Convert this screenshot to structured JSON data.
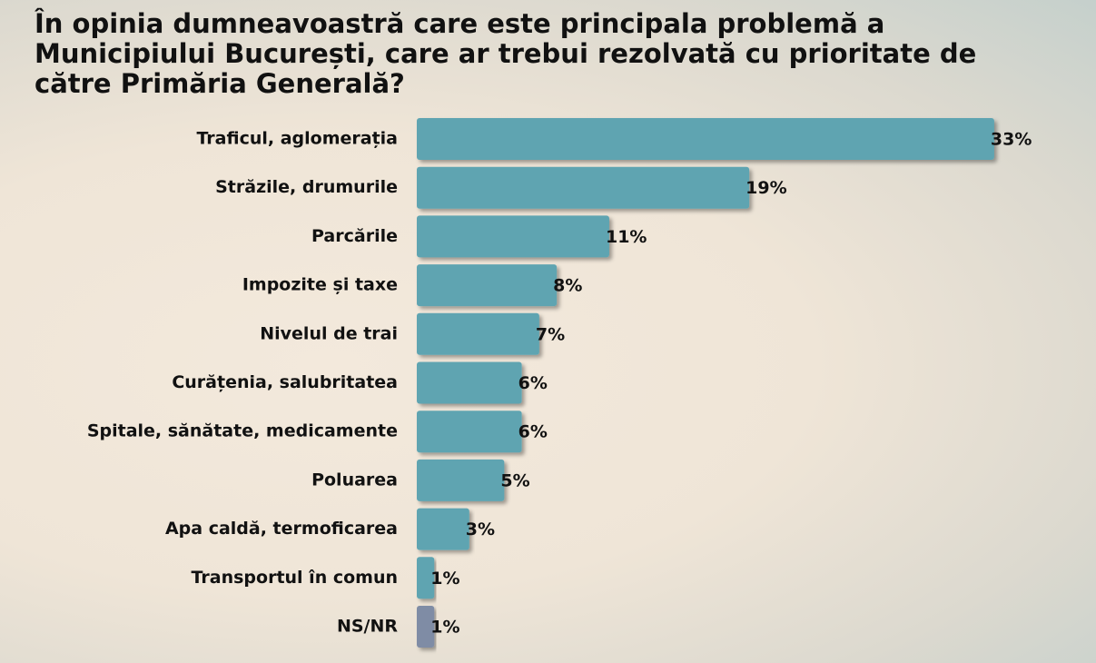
{
  "chart_data": {
    "type": "barh",
    "title": "În opinia dumneavoastră care este principala problemă a Municipiului București, care ar trebui rezolvată cu prioritate de către Primăria Generală?",
    "categories": [
      "Traficul, aglomerația",
      "Străzile, drumurile",
      "Parcările",
      "Impozite și taxe",
      "Nivelul de trai",
      "Curățenia, salubritatea",
      "Spitale, sănătate, medicamente",
      "Poluarea",
      "Apa caldă, termoficarea",
      "Transportul în comun",
      "NS/NR"
    ],
    "values": [
      33,
      19,
      11,
      8,
      7,
      6,
      6,
      5,
      3,
      1,
      1
    ],
    "value_labels": [
      "33%",
      "19%",
      "11%",
      "8%",
      "7%",
      "6%",
      "6%",
      "5%",
      "3%",
      "1%",
      "1%"
    ],
    "colors": [
      "#5fa4b1",
      "#5fa4b1",
      "#5fa4b1",
      "#5fa4b1",
      "#5fa4b1",
      "#5fa4b1",
      "#5fa4b1",
      "#5fa4b1",
      "#5fa4b1",
      "#5fa4b1",
      "#7f8ca5"
    ]
  }
}
